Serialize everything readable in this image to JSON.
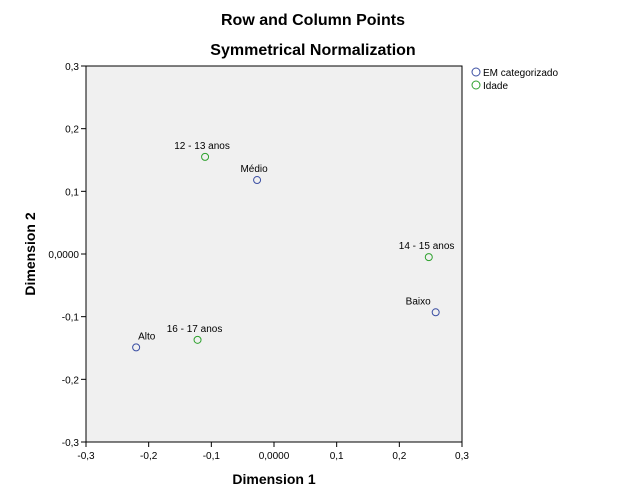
{
  "chart_data": {
    "type": "scatter",
    "title": "Row and Column Points",
    "subtitle": "Symmetrical Normalization",
    "xlabel": "Dimension 1",
    "ylabel": "Dimension 2",
    "xlim": [
      -0.3,
      0.3
    ],
    "ylim": [
      -0.3,
      0.3
    ],
    "xticks": [
      "-0,3",
      "-0,2",
      "-0,1",
      "0,0000",
      "0,1",
      "0,2",
      "0,3"
    ],
    "yticks": [
      "0,3",
      "0,2",
      "0,1",
      "0,0000",
      "-0,1",
      "-0,2",
      "-0,3"
    ],
    "grid": false,
    "legend_position": "top-right",
    "series": [
      {
        "name": "EM categorizado",
        "color": "#3b4fa3",
        "points": [
          {
            "label": "Médio",
            "x": -0.027,
            "y": 0.118
          },
          {
            "label": "Baixo",
            "x": 0.258,
            "y": -0.093
          },
          {
            "label": "Alto",
            "x": -0.22,
            "y": -0.149
          }
        ]
      },
      {
        "name": "Idade",
        "color": "#2ea12e",
        "points": [
          {
            "label": "12 - 13 anos",
            "x": -0.11,
            "y": 0.155
          },
          {
            "label": "14 - 15 anos",
            "x": 0.247,
            "y": -0.005
          },
          {
            "label": "16 - 17 anos",
            "x": -0.122,
            "y": -0.137
          }
        ]
      }
    ]
  }
}
